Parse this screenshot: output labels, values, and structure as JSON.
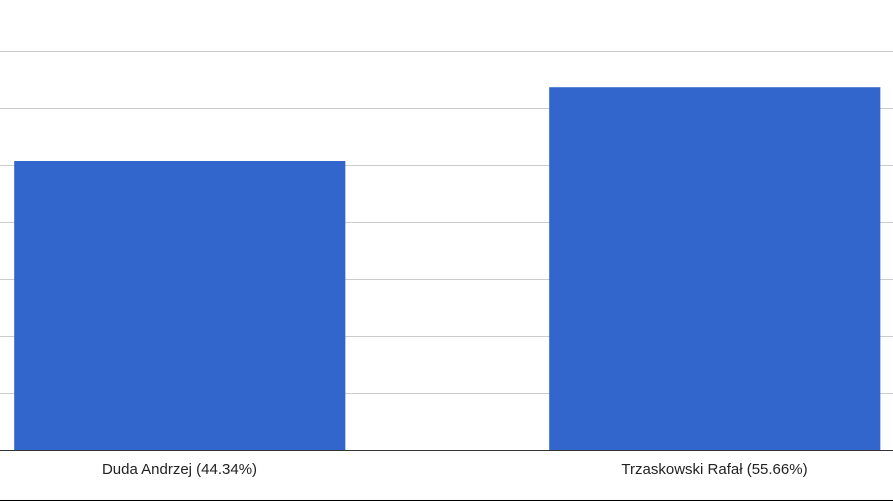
{
  "chart_data": {
    "type": "bar",
    "categories": [
      "Duda Andrzej (44.34%)",
      "Trzaskowski Rafał (55.66%)"
    ],
    "values": [
      44.34,
      55.66
    ],
    "color": "#3366cc",
    "ylim": [
      0,
      69.04
    ],
    "gridlines": [
      8.75,
      17.5,
      26.25,
      35,
      43.75,
      52.5,
      61.25
    ],
    "grid": true
  }
}
